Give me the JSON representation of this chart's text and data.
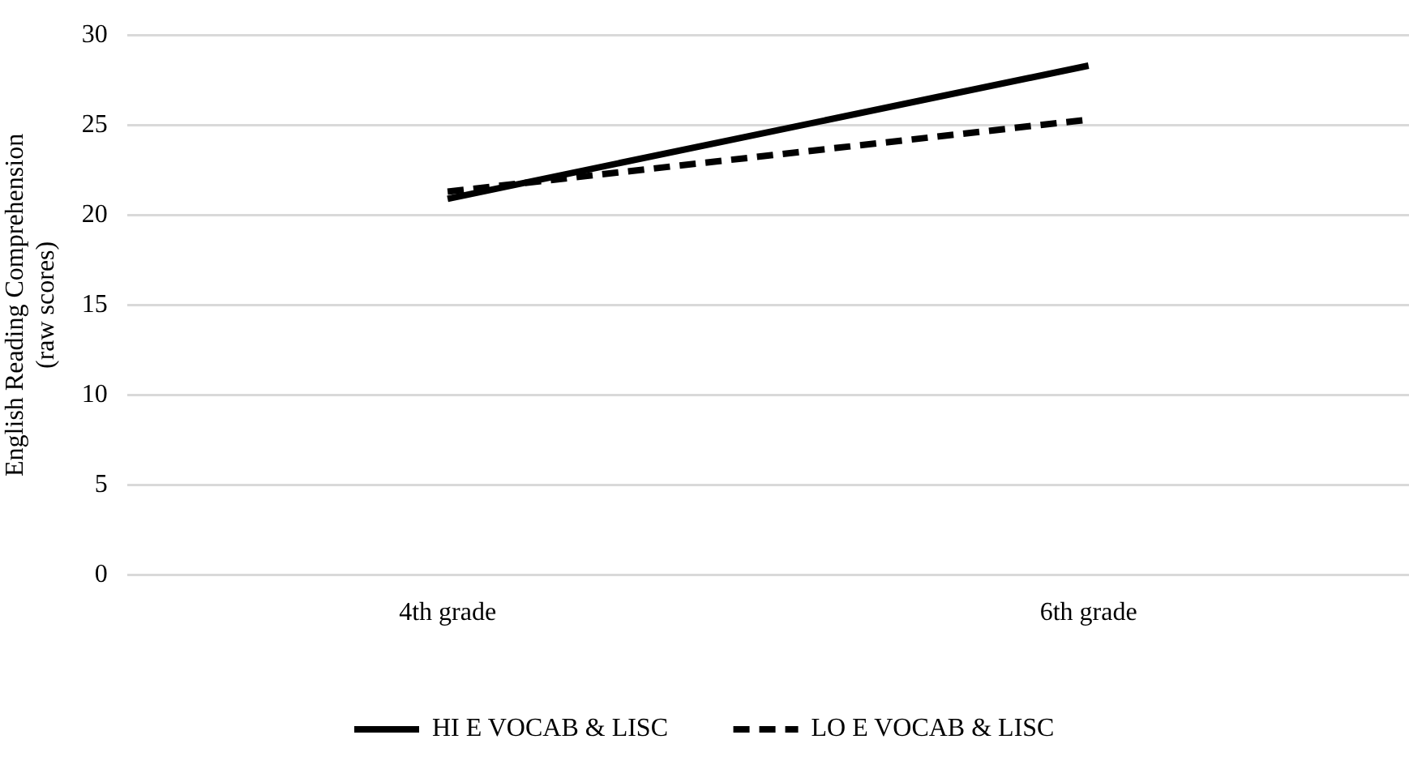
{
  "chart_data": {
    "type": "line",
    "ylabel": "English Reading Comprehension\n(raw scores)",
    "categories": [
      "4th grade",
      "6th grade"
    ],
    "series": [
      {
        "name": "HI E VOCAB & LISC",
        "color": "#000000",
        "values": [
          20.9,
          28.3
        ],
        "line_style": "solid"
      },
      {
        "name": "LO E VOCAB & LISC",
        "color": "#000000",
        "values": [
          21.3,
          25.3
        ],
        "line_style": "dashed"
      }
    ],
    "ylim": [
      0,
      30
    ],
    "yticks": [
      0,
      5,
      10,
      15,
      20,
      25,
      30
    ],
    "grid": "y",
    "legend": "bottom",
    "marker": "none"
  }
}
